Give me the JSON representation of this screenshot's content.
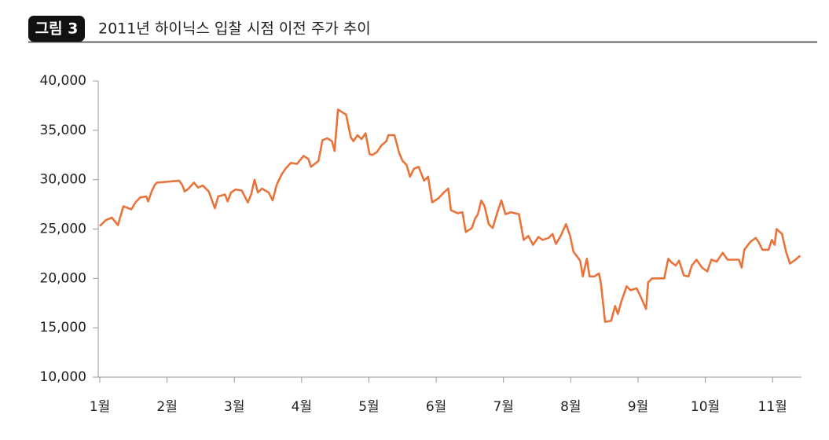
{
  "chart_data": {
    "type": "line",
    "figure_label": "그림 3",
    "title": "2011년 하이닉스 입찰 시점 이전 주가 추이",
    "color": "#e8743b",
    "x": [
      1.0,
      1.09,
      1.18,
      1.27,
      1.35,
      1.47,
      1.53,
      1.6,
      1.69,
      1.72,
      1.77,
      1.82,
      1.85,
      2.18,
      2.23,
      2.26,
      2.32,
      2.4,
      2.46,
      2.53,
      2.62,
      2.71,
      2.76,
      2.86,
      2.9,
      2.95,
      3.02,
      3.11,
      3.2,
      3.25,
      3.3,
      3.35,
      3.41,
      3.51,
      3.57,
      3.63,
      3.7,
      3.76,
      3.84,
      3.93,
      4.03,
      4.1,
      4.14,
      4.25,
      4.31,
      4.38,
      4.45,
      4.49,
      4.54,
      4.61,
      4.66,
      4.73,
      4.77,
      4.83,
      4.89,
      4.95,
      5.01,
      5.05,
      5.12,
      5.19,
      5.26,
      5.29,
      5.38,
      5.45,
      5.5,
      5.56,
      5.61,
      5.67,
      5.74,
      5.82,
      5.88,
      5.94,
      6.03,
      6.13,
      6.18,
      6.22,
      6.32,
      6.39,
      6.44,
      6.53,
      6.58,
      6.62,
      6.67,
      6.72,
      6.78,
      6.84,
      6.91,
      6.97,
      7.03,
      7.11,
      7.23,
      7.3,
      7.37,
      7.44,
      7.52,
      7.58,
      7.67,
      7.73,
      7.78,
      7.85,
      7.93,
      7.99,
      8.04,
      8.14,
      8.18,
      8.24,
      8.28,
      8.35,
      8.42,
      8.45,
      8.51,
      8.6,
      8.66,
      8.7,
      8.75,
      8.83,
      8.89,
      8.98,
      9.05,
      9.12,
      9.15,
      9.21,
      9.39,
      9.45,
      9.5,
      9.56,
      9.61,
      9.68,
      9.75,
      9.8,
      9.87,
      9.95,
      10.03,
      10.09,
      10.17,
      10.26,
      10.33,
      10.5,
      10.54,
      10.58,
      10.67,
      10.75,
      10.79,
      10.85,
      10.94,
      10.99,
      11.03,
      11.06,
      11.14,
      11.2,
      11.26,
      11.34,
      11.41
    ],
    "values": [
      25300,
      25900,
      26150,
      25400,
      27300,
      27000,
      27700,
      28200,
      28300,
      27800,
      28800,
      29500,
      29700,
      29900,
      29400,
      28800,
      29100,
      29700,
      29200,
      29400,
      28800,
      27100,
      28300,
      28500,
      27800,
      28700,
      29000,
      28900,
      27700,
      28500,
      30000,
      28700,
      29100,
      28700,
      27900,
      29500,
      30500,
      31100,
      31700,
      31600,
      32400,
      32100,
      31300,
      31900,
      34000,
      34200,
      33900,
      32900,
      37100,
      36800,
      36600,
      34300,
      33900,
      34500,
      34100,
      34700,
      32600,
      32500,
      32800,
      33500,
      33900,
      34500,
      34500,
      32700,
      31900,
      31500,
      30300,
      31100,
      31300,
      29900,
      30300,
      27700,
      28100,
      28800,
      29100,
      26900,
      26600,
      26700,
      24700,
      25100,
      26100,
      26500,
      27900,
      27300,
      25500,
      25100,
      26700,
      27900,
      26500,
      26700,
      26500,
      23900,
      24300,
      23400,
      24200,
      23900,
      24100,
      24500,
      23500,
      24300,
      25500,
      24300,
      22700,
      21800,
      20200,
      22000,
      20200,
      20200,
      20500,
      19400,
      15600,
      15700,
      17200,
      16400,
      17600,
      19200,
      18800,
      19000,
      18000,
      16900,
      19600,
      20000,
      20000,
      22000,
      21600,
      21300,
      21800,
      20300,
      20200,
      21300,
      21900,
      21100,
      20700,
      21900,
      21700,
      22600,
      21900,
      21900,
      21100,
      22900,
      23700,
      24100,
      23700,
      22900,
      22900,
      23900,
      23400,
      25000,
      24500,
      22700,
      21500,
      21900,
      22300
    ],
    "xlim": [
      1,
      11.43
    ],
    "xticks": [
      {
        "value": 1,
        "label": "1월"
      },
      {
        "value": 2,
        "label": "2월"
      },
      {
        "value": 3,
        "label": "3월"
      },
      {
        "value": 4,
        "label": "4월"
      },
      {
        "value": 5,
        "label": "5월"
      },
      {
        "value": 6,
        "label": "6월"
      },
      {
        "value": 7,
        "label": "7월"
      },
      {
        "value": 8,
        "label": "8월"
      },
      {
        "value": 9,
        "label": "9월"
      },
      {
        "value": 10,
        "label": "10월"
      },
      {
        "value": 11,
        "label": "11월"
      }
    ],
    "ylim": [
      10000,
      40000
    ],
    "yticks": [
      {
        "value": 10000,
        "label": "10,000"
      },
      {
        "value": 15000,
        "label": "15,000"
      },
      {
        "value": 20000,
        "label": "20,000"
      },
      {
        "value": 25000,
        "label": "25,000"
      },
      {
        "value": 30000,
        "label": "30,000"
      },
      {
        "value": 35000,
        "label": "35,000"
      },
      {
        "value": 40000,
        "label": "40,000"
      }
    ]
  }
}
